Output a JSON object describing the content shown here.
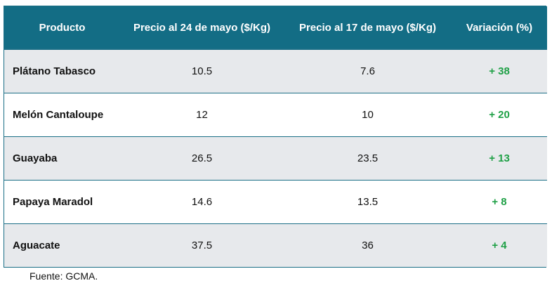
{
  "table": {
    "headers": [
      "Producto",
      "Precio al 24 de mayo ($/Kg)",
      "Precio al 17 de mayo ($/Kg)",
      "Variación (%)"
    ],
    "rows": [
      {
        "product": "Plátano Tabasco",
        "price_may24": "10.5",
        "price_may17": "7.6",
        "variation": "+ 38"
      },
      {
        "product": "Melón Cantaloupe",
        "price_may24": "12",
        "price_may17": "10",
        "variation": "+ 20"
      },
      {
        "product": "Guayaba",
        "price_may24": "26.5",
        "price_may17": "23.5",
        "variation": "+ 13"
      },
      {
        "product": "Papaya Maradol",
        "price_may24": "14.6",
        "price_may17": "13.5",
        "variation": "+ 8"
      },
      {
        "product": "Aguacate",
        "price_may24": "37.5",
        "price_may17": "36",
        "variation": "+ 4"
      }
    ]
  },
  "source": "Fuente: GCMA.",
  "colors": {
    "header_bg": "#136d85",
    "header_text": "#ffffff",
    "row_shaded": "#e7e9ec",
    "row_plain": "#ffffff",
    "border": "#1b6f86",
    "variation_positive": "#1fa046"
  }
}
